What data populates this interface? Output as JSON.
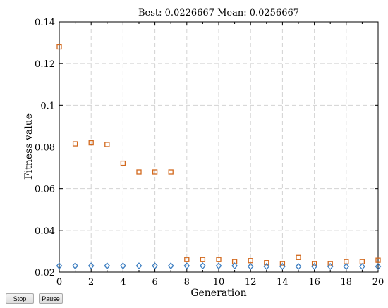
{
  "controls": {
    "stop_label": "Stop",
    "pause_label": "Pause"
  },
  "colors": {
    "best": "#3d7ec1",
    "mean": "#d2691e",
    "grid": "#d3d3d3"
  },
  "chart_data": {
    "type": "scatter",
    "title": "Best: 0.0226667 Mean: 0.0256667",
    "xlabel": "Generation",
    "ylabel": "Fitness value",
    "xlim": [
      0,
      20
    ],
    "ylim": [
      0.02,
      0.14
    ],
    "xticks": [
      0,
      2,
      4,
      6,
      8,
      10,
      12,
      14,
      16,
      18,
      20
    ],
    "yticks": [
      0.02,
      0.04,
      0.06,
      0.08,
      0.1,
      0.12,
      0.14
    ],
    "ytick_labels": [
      "0.02",
      "0.04",
      "0.06",
      "0.08",
      "0.1",
      "0.12",
      "0.14"
    ],
    "grid": true,
    "series": [
      {
        "marker": "square",
        "x": [
          0,
          1,
          2,
          3,
          4,
          5,
          6,
          7,
          8,
          9,
          10,
          11,
          12,
          13,
          14,
          15,
          16,
          17,
          18,
          19,
          20
        ],
        "values": [
          0.128,
          0.0815,
          0.082,
          0.0812,
          0.0722,
          0.068,
          0.068,
          0.068,
          0.026,
          0.026,
          0.026,
          0.025,
          0.0255,
          0.0245,
          0.024,
          0.027,
          0.024,
          0.024,
          0.025,
          0.025,
          0.0257
        ]
      },
      {
        "marker": "diamond",
        "x": [
          0,
          1,
          2,
          3,
          4,
          5,
          6,
          7,
          8,
          9,
          10,
          11,
          12,
          13,
          14,
          15,
          16,
          17,
          18,
          19,
          20
        ],
        "values": [
          0.023,
          0.023,
          0.023,
          0.023,
          0.023,
          0.023,
          0.023,
          0.023,
          0.023,
          0.023,
          0.023,
          0.023,
          0.0227,
          0.0227,
          0.0227,
          0.0227,
          0.0227,
          0.0227,
          0.0227,
          0.0227,
          0.0227
        ]
      }
    ]
  }
}
